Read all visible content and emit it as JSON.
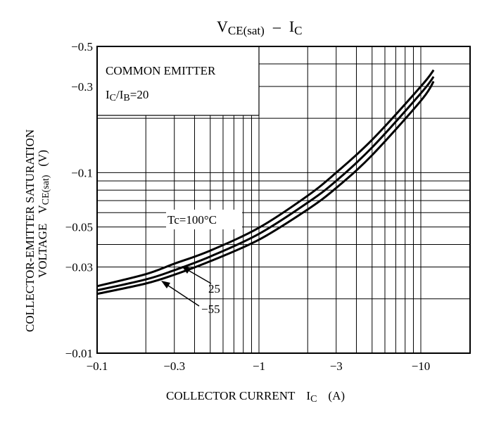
{
  "chart_data": {
    "type": "line",
    "title_main": "V",
    "title_sub": "CE(sat)",
    "title_sep": "–",
    "title_ic": "I",
    "title_ic_sub": "C",
    "xlabel_text": "COLLECTOR CURRENT",
    "xlabel_sym": "I",
    "xlabel_sub": "C",
    "xlabel_unit": "(A)",
    "ylabel_line1": "COLLECTOR-EMITTER SATURATION",
    "ylabel_line2_text": "VOLTAGE",
    "ylabel_line2_sym": "V",
    "ylabel_line2_sub": "CE(sat)",
    "ylabel_line2_unit": "(V)",
    "x_scale": "log",
    "y_scale": "log",
    "xlim": [
      -0.1,
      -20
    ],
    "ylim": [
      -0.01,
      -0.5
    ],
    "x_ticks": [
      {
        "value": -0.1,
        "label": "−0.1"
      },
      {
        "value": -0.3,
        "label": "−0.3"
      },
      {
        "value": -1,
        "label": "−1"
      },
      {
        "value": -3,
        "label": "−3"
      },
      {
        "value": -10,
        "label": "−10"
      }
    ],
    "y_ticks": [
      {
        "value": -0.01,
        "label": "−0.01"
      },
      {
        "value": -0.03,
        "label": "−0.03"
      },
      {
        "value": -0.05,
        "label": "−0.05"
      },
      {
        "value": -0.1,
        "label": "−0.1"
      },
      {
        "value": -0.3,
        "label": "−0.3"
      },
      {
        "value": -0.5,
        "label": "−0.5"
      }
    ],
    "grid": true,
    "conditions": {
      "line1": "COMMON EMITTER",
      "line2_a": "I",
      "line2_a_sub": "C",
      "line2_slash": "/",
      "line2_b": "I",
      "line2_b_sub": "B",
      "line2_eq": "=20"
    },
    "series": [
      {
        "name": "Tc=100°C",
        "x": [
          -0.1,
          -0.2,
          -0.3,
          -0.5,
          -1,
          -2,
          -3,
          -5,
          -10,
          -12
        ],
        "y": [
          -0.0235,
          -0.0274,
          -0.0313,
          -0.037,
          -0.0495,
          -0.0745,
          -0.1,
          -0.152,
          -0.3,
          -0.37
        ]
      },
      {
        "name": "25",
        "x": [
          -0.1,
          -0.2,
          -0.3,
          -0.5,
          -1,
          -2,
          -3,
          -5,
          -10,
          -12
        ],
        "y": [
          -0.0223,
          -0.0256,
          -0.0288,
          -0.0343,
          -0.0458,
          -0.0682,
          -0.09,
          -0.138,
          -0.275,
          -0.34
        ]
      },
      {
        "name": "−55",
        "x": [
          -0.1,
          -0.2,
          -0.3,
          -0.5,
          -1,
          -2,
          -3,
          -5,
          -10,
          -12
        ],
        "y": [
          -0.0213,
          -0.0243,
          -0.0272,
          -0.0323,
          -0.0425,
          -0.0625,
          -0.0822,
          -0.125,
          -0.25,
          -0.32
        ]
      }
    ]
  }
}
